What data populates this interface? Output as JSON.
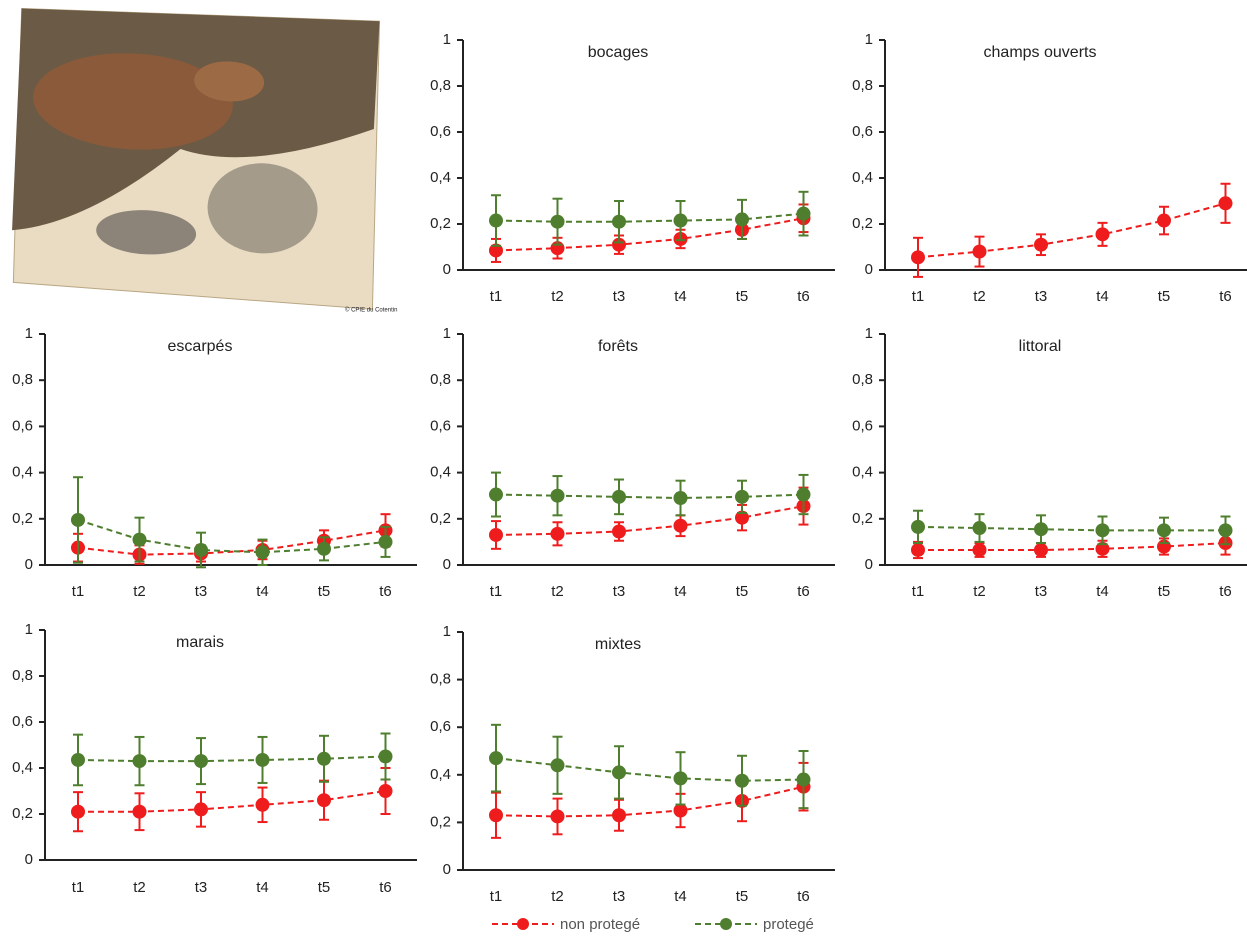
{
  "photo_credit": "© CPIE du Cotentin",
  "legend": [
    {
      "name": "non protegé",
      "color": "#ee1c1c"
    },
    {
      "name": "protegé",
      "color": "#4e7e2e"
    }
  ],
  "chart_data": [
    {
      "type": "line",
      "title": "bocages",
      "categories": [
        "t1",
        "t2",
        "t3",
        "t4",
        "t5",
        "t6"
      ],
      "ylim": [
        0,
        1
      ],
      "yticks": [
        0,
        {
          "value": 0.2,
          "label": "0,2"
        },
        {
          "value": 0.4,
          "label": "0,4"
        },
        {
          "value": 0.6,
          "label": "0,6"
        },
        {
          "value": 0.8,
          "label": "0,8"
        },
        1
      ],
      "series": [
        {
          "values": [
            0.085,
            0.095,
            0.11,
            0.135,
            0.175,
            0.225
          ],
          "errors": [
            0.05,
            0.045,
            0.04,
            0.04,
            0.04,
            0.06
          ]
        },
        {
          "values": [
            0.215,
            0.21,
            0.21,
            0.215,
            0.22,
            0.245
          ],
          "errors": [
            0.11,
            0.1,
            0.09,
            0.085,
            0.085,
            0.095
          ]
        }
      ]
    },
    {
      "type": "line",
      "title": "champs ouverts",
      "categories": [
        "t1",
        "t2",
        "t3",
        "t4",
        "t5",
        "t6"
      ],
      "ylim": [
        0,
        1
      ],
      "yticks": [
        0,
        {
          "value": 0.2,
          "label": "0,2"
        },
        {
          "value": 0.4,
          "label": "0,4"
        },
        {
          "value": 0.6,
          "label": "0,6"
        },
        {
          "value": 0.8,
          "label": "0,8"
        },
        1
      ],
      "series": [
        {
          "values": [
            0.055,
            0.08,
            0.11,
            0.155,
            0.215,
            0.29
          ],
          "errors": [
            0.085,
            0.065,
            0.045,
            0.05,
            0.06,
            0.085
          ]
        },
        {
          "values": [
            null,
            null,
            null,
            null,
            null,
            null
          ],
          "errors": [
            null,
            null,
            null,
            null,
            null,
            null
          ]
        }
      ]
    },
    {
      "type": "line",
      "title": "escarpés",
      "categories": [
        "t1",
        "t2",
        "t3",
        "t4",
        "t5",
        "t6"
      ],
      "ylim": [
        0,
        1
      ],
      "yticks": [
        0,
        {
          "value": 0.2,
          "label": "0,2"
        },
        {
          "value": 0.4,
          "label": "0,4"
        },
        {
          "value": 0.6,
          "label": "0,6"
        },
        {
          "value": 0.8,
          "label": "0,8"
        },
        1
      ],
      "series": [
        {
          "values": [
            0.075,
            0.045,
            0.05,
            0.065,
            0.105,
            0.15
          ],
          "errors": [
            0.06,
            0.04,
            0.035,
            0.04,
            0.045,
            0.07
          ]
        },
        {
          "values": [
            0.195,
            0.11,
            0.065,
            0.055,
            0.07,
            0.1
          ],
          "errors": [
            0.185,
            0.095,
            0.075,
            0.055,
            0.05,
            0.065
          ]
        }
      ]
    },
    {
      "type": "line",
      "title": "forêts",
      "categories": [
        "t1",
        "t2",
        "t3",
        "t4",
        "t5",
        "t6"
      ],
      "ylim": [
        0,
        1
      ],
      "yticks": [
        0,
        {
          "value": 0.2,
          "label": "0,2"
        },
        {
          "value": 0.4,
          "label": "0,4"
        },
        {
          "value": 0.6,
          "label": "0,6"
        },
        {
          "value": 0.8,
          "label": "0,8"
        },
        1
      ],
      "series": [
        {
          "values": [
            0.13,
            0.135,
            0.145,
            0.17,
            0.205,
            0.255
          ],
          "errors": [
            0.06,
            0.05,
            0.04,
            0.045,
            0.055,
            0.08
          ]
        },
        {
          "values": [
            0.305,
            0.3,
            0.295,
            0.29,
            0.295,
            0.305
          ],
          "errors": [
            0.095,
            0.085,
            0.075,
            0.075,
            0.07,
            0.085
          ]
        }
      ]
    },
    {
      "type": "line",
      "title": "littoral",
      "categories": [
        "t1",
        "t2",
        "t3",
        "t4",
        "t5",
        "t6"
      ],
      "ylim": [
        0,
        1
      ],
      "yticks": [
        0,
        {
          "value": 0.2,
          "label": "0,2"
        },
        {
          "value": 0.4,
          "label": "0,4"
        },
        {
          "value": 0.6,
          "label": "0,6"
        },
        {
          "value": 0.8,
          "label": "0,8"
        },
        1
      ],
      "series": [
        {
          "values": [
            0.065,
            0.065,
            0.065,
            0.07,
            0.08,
            0.095
          ],
          "errors": [
            0.035,
            0.03,
            0.03,
            0.035,
            0.035,
            0.05
          ]
        },
        {
          "values": [
            0.165,
            0.16,
            0.155,
            0.15,
            0.15,
            0.15
          ],
          "errors": [
            0.07,
            0.06,
            0.06,
            0.06,
            0.055,
            0.06
          ]
        }
      ]
    },
    {
      "type": "line",
      "title": "marais",
      "categories": [
        "t1",
        "t2",
        "t3",
        "t4",
        "t5",
        "t6"
      ],
      "ylim": [
        0,
        1
      ],
      "yticks": [
        0,
        {
          "value": 0.2,
          "label": "0,2"
        },
        {
          "value": 0.4,
          "label": "0,4"
        },
        {
          "value": 0.6,
          "label": "0,6"
        },
        {
          "value": 0.8,
          "label": "0,8"
        },
        1
      ],
      "series": [
        {
          "values": [
            0.21,
            0.21,
            0.22,
            0.24,
            0.26,
            0.3
          ],
          "errors": [
            0.085,
            0.08,
            0.075,
            0.075,
            0.085,
            0.1
          ]
        },
        {
          "values": [
            0.435,
            0.43,
            0.43,
            0.435,
            0.44,
            0.45
          ],
          "errors": [
            0.11,
            0.105,
            0.1,
            0.1,
            0.1,
            0.1
          ]
        }
      ]
    },
    {
      "type": "line",
      "title": "mixtes",
      "categories": [
        "t1",
        "t2",
        "t3",
        "t4",
        "t5",
        "t6"
      ],
      "ylim": [
        0,
        1
      ],
      "yticks": [
        0,
        {
          "value": 0.2,
          "label": "0,2"
        },
        {
          "value": 0.4,
          "label": "0,4"
        },
        {
          "value": 0.6,
          "label": "0,6"
        },
        {
          "value": 0.8,
          "label": "0,8"
        },
        1
      ],
      "series": [
        {
          "values": [
            0.23,
            0.225,
            0.23,
            0.25,
            0.29,
            0.35
          ],
          "errors": [
            0.095,
            0.075,
            0.065,
            0.07,
            0.085,
            0.1
          ]
        },
        {
          "values": [
            0.47,
            0.44,
            0.41,
            0.385,
            0.375,
            0.38
          ],
          "errors": [
            0.14,
            0.12,
            0.11,
            0.11,
            0.105,
            0.12
          ]
        }
      ]
    }
  ]
}
